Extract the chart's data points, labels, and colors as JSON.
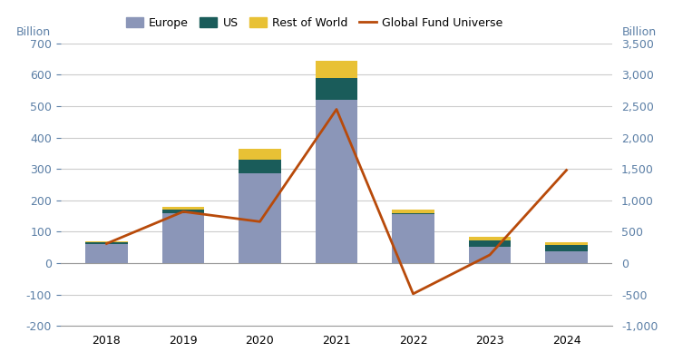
{
  "years": [
    2018,
    2019,
    2020,
    2021,
    2022,
    2023,
    2024
  ],
  "europe": [
    62,
    160,
    285,
    520,
    155,
    72,
    57
  ],
  "us": [
    3,
    10,
    45,
    70,
    5,
    -20,
    -20
  ],
  "rest_of_world": [
    3,
    8,
    35,
    55,
    10,
    12,
    8
  ],
  "global_fund_universe": [
    310,
    820,
    660,
    2450,
    -490,
    130,
    1480
  ],
  "europe_color": "#8B96B8",
  "us_color": "#1A5C5A",
  "row_color": "#E8C135",
  "gfu_color": "#B84A0A",
  "left_ylim": [
    -200,
    700
  ],
  "right_ylim": [
    -1000,
    3500
  ],
  "left_yticks": [
    -200,
    -100,
    0,
    100,
    200,
    300,
    400,
    500,
    600,
    700
  ],
  "right_yticks": [
    -1000,
    -500,
    0,
    500,
    1000,
    1500,
    2000,
    2500,
    3000,
    3500
  ],
  "right_yticklabels": [
    "-1,000",
    "-500",
    "0",
    "500",
    "1,000",
    "1,500",
    "2,000",
    "2,500",
    "3,000",
    "3,500"
  ],
  "left_yticklabels": [
    "-200",
    "-100",
    "0",
    "100",
    "200",
    "300",
    "400",
    "500",
    "600",
    "700"
  ],
  "billion_label": "Billion",
  "legend_europe": "Europe",
  "legend_us": "US",
  "legend_row": "Rest of World",
  "legend_gfu": "Global Fund Universe",
  "bar_width": 0.55,
  "grid_color": "#cccccc",
  "background_color": "#ffffff",
  "axis_label_color": "#5B7FA6",
  "tick_color": "#5B7FA6",
  "line_color": "#B84A0A",
  "spine_color": "#cccccc"
}
